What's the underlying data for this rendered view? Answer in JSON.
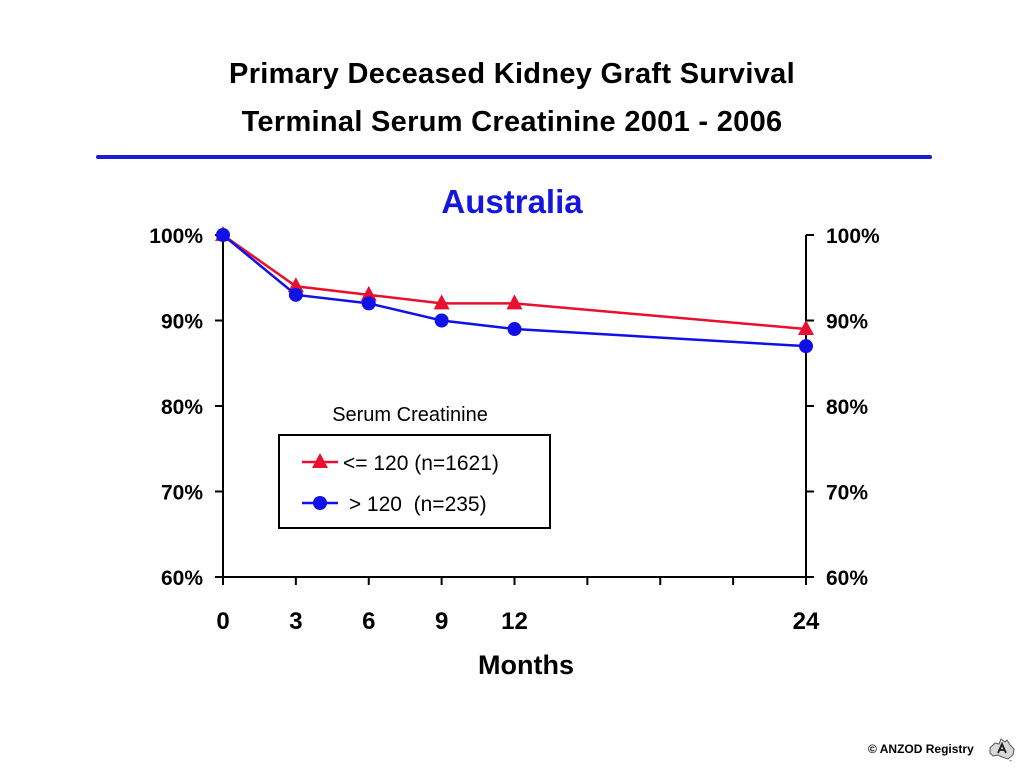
{
  "header": {
    "title_line1": "Primary Deceased Kidney Graft Survival",
    "title_line2": "Terminal Serum Creatinine  2001 - 2006",
    "divider_color": "#1c1cd8"
  },
  "chart_data": {
    "type": "line",
    "title": "Australia",
    "title_color": "#1515e0",
    "xlabel": "Months",
    "ylabel": "",
    "x_ticks": [
      0,
      3,
      6,
      9,
      12,
      15,
      18,
      21,
      24
    ],
    "x_tick_labels": [
      "0",
      "3",
      "6",
      "9",
      "12",
      "",
      "",
      "",
      "24"
    ],
    "xlim": [
      0,
      24
    ],
    "ylim": [
      60,
      100
    ],
    "y_ticks": [
      60,
      70,
      80,
      90,
      100
    ],
    "y_tick_labels": [
      "60%",
      "70%",
      "80%",
      "90%",
      "100%"
    ],
    "secondary_y_axis": true,
    "grid": false,
    "legend_title": "Serum Creatinine",
    "legend_position": "center",
    "series": [
      {
        "name": "<= 120 (n=1621)",
        "color": "#e8102e",
        "marker": "triangle",
        "x": [
          0,
          3,
          6,
          9,
          12,
          24
        ],
        "values": [
          100,
          94,
          93,
          92,
          92,
          89
        ]
      },
      {
        "name": " > 120  (n=235)",
        "color": "#1010e8",
        "marker": "circle",
        "x": [
          0,
          3,
          6,
          9,
          12,
          24
        ],
        "values": [
          100,
          93,
          92,
          90,
          89,
          87
        ]
      }
    ]
  },
  "footer": {
    "copyright": "© ANZOD Registry",
    "logo_icon": "anzod-australia-map-icon"
  }
}
